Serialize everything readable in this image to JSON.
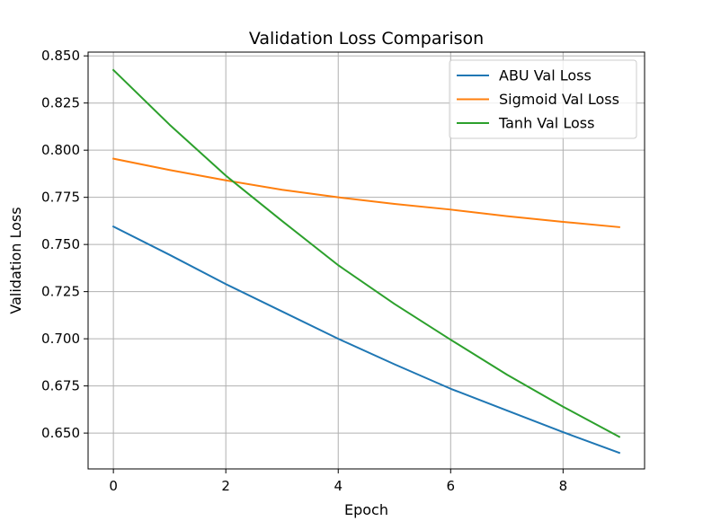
{
  "chart_data": {
    "type": "line",
    "title": "Validation Loss Comparison",
    "xlabel": "Epoch",
    "ylabel": "Validation Loss",
    "xlim": [
      -0.45,
      9.45
    ],
    "ylim": [
      0.631,
      0.852
    ],
    "xticks": [
      0,
      2,
      4,
      6,
      8
    ],
    "yticks": [
      0.65,
      0.675,
      0.7,
      0.725,
      0.75,
      0.775,
      0.8,
      0.825,
      0.85
    ],
    "ytick_labels": [
      "0.650",
      "0.675",
      "0.700",
      "0.725",
      "0.750",
      "0.775",
      "0.800",
      "0.825",
      "0.850"
    ],
    "grid": true,
    "legend_position": "top-right",
    "x": [
      0,
      1,
      2,
      3,
      4,
      5,
      6,
      7,
      8,
      9
    ],
    "series": [
      {
        "name": "ABU Val Loss",
        "color": "#1f77b4",
        "values": [
          0.7595,
          0.7445,
          0.729,
          0.7145,
          0.7,
          0.6865,
          0.6735,
          0.662,
          0.6505,
          0.6395
        ]
      },
      {
        "name": "Sigmoid Val Loss",
        "color": "#ff7f0e",
        "values": [
          0.7955,
          0.7895,
          0.784,
          0.779,
          0.775,
          0.7715,
          0.7685,
          0.765,
          0.762,
          0.7592
        ]
      },
      {
        "name": "Tanh Val Loss",
        "color": "#2ca02c",
        "values": [
          0.8425,
          0.8135,
          0.7865,
          0.7625,
          0.739,
          0.7185,
          0.6995,
          0.681,
          0.664,
          0.648
        ]
      }
    ]
  }
}
